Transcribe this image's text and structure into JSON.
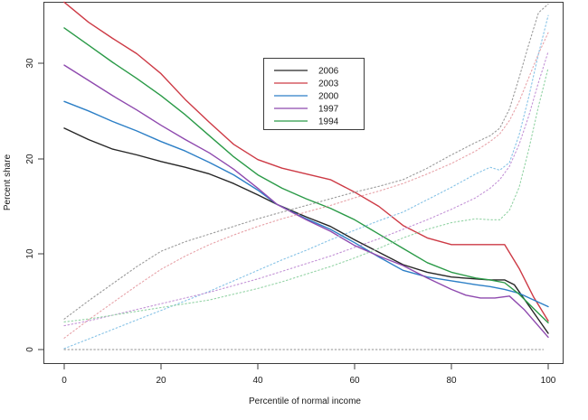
{
  "chart_data": {
    "type": "line",
    "title": "",
    "xlabel": "Percentile of normal income",
    "ylabel": "Percent share",
    "xlim": [
      -4,
      104
    ],
    "ylim": [
      -1.5,
      36.5
    ],
    "grid": false,
    "legend_position": "top-center",
    "x_tick_labels": [
      "0",
      "20",
      "40",
      "60",
      "80",
      "100"
    ],
    "x_tick_values": [
      0,
      20,
      40,
      60,
      80,
      100
    ],
    "y_tick_labels": [
      "0",
      "10",
      "20",
      "30"
    ],
    "y_tick_values": [
      0,
      10,
      20,
      30
    ],
    "legend_entries": [
      "2006",
      "2003",
      "2000",
      "1997",
      "1994"
    ],
    "series": [
      {
        "name": "2006",
        "color": "#262626",
        "style": "solid",
        "points": [
          [
            0,
            23.2
          ],
          [
            5,
            22.0
          ],
          [
            10,
            21.0
          ],
          [
            15,
            20.4
          ],
          [
            20,
            19.7
          ],
          [
            25,
            19.1
          ],
          [
            30,
            18.4
          ],
          [
            35,
            17.4
          ],
          [
            40,
            16.2
          ],
          [
            44,
            15.2
          ],
          [
            50,
            13.9
          ],
          [
            55,
            12.9
          ],
          [
            60,
            11.5
          ],
          [
            65,
            10.2
          ],
          [
            70,
            8.9
          ],
          [
            75,
            8.1
          ],
          [
            80,
            7.6
          ],
          [
            85,
            7.4
          ],
          [
            88,
            7.3
          ],
          [
            91,
            7.3
          ],
          [
            93,
            6.8
          ],
          [
            96,
            4.6
          ],
          [
            100,
            1.7
          ]
        ]
      },
      {
        "name": "2003",
        "color": "#cd3a45",
        "style": "solid",
        "points": [
          [
            0,
            36.4
          ],
          [
            5,
            34.3
          ],
          [
            10,
            32.6
          ],
          [
            15,
            31.0
          ],
          [
            20,
            28.9
          ],
          [
            25,
            26.2
          ],
          [
            30,
            23.8
          ],
          [
            35,
            21.5
          ],
          [
            40,
            19.9
          ],
          [
            45,
            19.0
          ],
          [
            50,
            18.4
          ],
          [
            55,
            17.8
          ],
          [
            60,
            16.5
          ],
          [
            65,
            15.0
          ],
          [
            70,
            13.0
          ],
          [
            75,
            11.7
          ],
          [
            80,
            11.0
          ],
          [
            85,
            11.0
          ],
          [
            88,
            11.0
          ],
          [
            91,
            11.0
          ],
          [
            94,
            8.5
          ],
          [
            97,
            5.5
          ],
          [
            100,
            3.0
          ]
        ]
      },
      {
        "name": "2000",
        "color": "#2c7fc6",
        "style": "solid",
        "points": [
          [
            0,
            26.0
          ],
          [
            5,
            25.0
          ],
          [
            10,
            23.9
          ],
          [
            15,
            22.9
          ],
          [
            20,
            21.8
          ],
          [
            25,
            20.8
          ],
          [
            30,
            19.6
          ],
          [
            35,
            18.3
          ],
          [
            40,
            16.7
          ],
          [
            44,
            15.2
          ],
          [
            50,
            13.7
          ],
          [
            55,
            12.6
          ],
          [
            60,
            11.2
          ],
          [
            65,
            9.7
          ],
          [
            70,
            8.3
          ],
          [
            75,
            7.6
          ],
          [
            80,
            7.2
          ],
          [
            85,
            6.8
          ],
          [
            88,
            6.6
          ],
          [
            91,
            6.3
          ],
          [
            94,
            5.9
          ],
          [
            97,
            5.2
          ],
          [
            100,
            4.5
          ]
        ]
      },
      {
        "name": "1997",
        "color": "#8e49ae",
        "style": "solid",
        "points": [
          [
            0,
            29.8
          ],
          [
            5,
            28.2
          ],
          [
            10,
            26.6
          ],
          [
            15,
            25.1
          ],
          [
            20,
            23.5
          ],
          [
            25,
            22.0
          ],
          [
            30,
            20.6
          ],
          [
            35,
            18.9
          ],
          [
            40,
            16.9
          ],
          [
            44,
            15.2
          ],
          [
            50,
            13.6
          ],
          [
            55,
            12.4
          ],
          [
            60,
            10.9
          ],
          [
            65,
            9.8
          ],
          [
            70,
            8.8
          ],
          [
            75,
            7.5
          ],
          [
            80,
            6.3
          ],
          [
            83,
            5.7
          ],
          [
            86,
            5.4
          ],
          [
            89,
            5.4
          ],
          [
            92,
            5.6
          ],
          [
            95,
            4.2
          ],
          [
            100,
            1.3
          ]
        ]
      },
      {
        "name": "1994",
        "color": "#2a9a47",
        "style": "solid",
        "points": [
          [
            0,
            33.7
          ],
          [
            5,
            31.9
          ],
          [
            10,
            30.1
          ],
          [
            15,
            28.4
          ],
          [
            20,
            26.6
          ],
          [
            25,
            24.6
          ],
          [
            30,
            22.4
          ],
          [
            35,
            20.2
          ],
          [
            40,
            18.3
          ],
          [
            45,
            16.9
          ],
          [
            50,
            15.8
          ],
          [
            55,
            14.8
          ],
          [
            60,
            13.6
          ],
          [
            65,
            12.1
          ],
          [
            70,
            10.6
          ],
          [
            75,
            9.1
          ],
          [
            80,
            8.1
          ],
          [
            85,
            7.5
          ],
          [
            88,
            7.3
          ],
          [
            91,
            7.0
          ],
          [
            94,
            5.8
          ],
          [
            97,
            4.3
          ],
          [
            100,
            2.8
          ]
        ]
      },
      {
        "name": "2006 dotted",
        "color": "#9a9a9a",
        "style": "dotted",
        "points": [
          [
            0,
            3.2
          ],
          [
            5,
            5.1
          ],
          [
            10,
            6.9
          ],
          [
            15,
            8.7
          ],
          [
            20,
            10.3
          ],
          [
            25,
            11.3
          ],
          [
            30,
            12.1
          ],
          [
            35,
            12.9
          ],
          [
            40,
            13.7
          ],
          [
            45,
            14.4
          ],
          [
            50,
            15.1
          ],
          [
            55,
            15.8
          ],
          [
            60,
            16.5
          ],
          [
            65,
            17.1
          ],
          [
            70,
            17.8
          ],
          [
            75,
            19.0
          ],
          [
            80,
            20.4
          ],
          [
            85,
            21.7
          ],
          [
            88,
            22.4
          ],
          [
            90,
            23.2
          ],
          [
            92,
            25.2
          ],
          [
            94,
            28.5
          ],
          [
            96,
            32.0
          ],
          [
            98,
            35.3
          ],
          [
            100,
            36.2
          ]
        ]
      },
      {
        "name": "2003 dotted",
        "color": "#e7a2a8",
        "style": "dotted",
        "points": [
          [
            0,
            1.2
          ],
          [
            5,
            3.1
          ],
          [
            10,
            4.9
          ],
          [
            15,
            6.7
          ],
          [
            20,
            8.4
          ],
          [
            25,
            9.8
          ],
          [
            30,
            11.0
          ],
          [
            35,
            12.0
          ],
          [
            40,
            12.9
          ],
          [
            45,
            13.7
          ],
          [
            50,
            14.4
          ],
          [
            55,
            15.1
          ],
          [
            60,
            15.9
          ],
          [
            65,
            16.6
          ],
          [
            70,
            17.4
          ],
          [
            75,
            18.4
          ],
          [
            80,
            19.5
          ],
          [
            85,
            20.8
          ],
          [
            88,
            21.8
          ],
          [
            90,
            22.6
          ],
          [
            92,
            24.0
          ],
          [
            94,
            26.0
          ],
          [
            96,
            28.5
          ],
          [
            98,
            31.0
          ],
          [
            100,
            33.2
          ]
        ]
      },
      {
        "name": "2000 dotted",
        "color": "#85c2e6",
        "style": "dotted",
        "points": [
          [
            0,
            0.1
          ],
          [
            5,
            1.1
          ],
          [
            10,
            2.1
          ],
          [
            15,
            3.1
          ],
          [
            20,
            4.1
          ],
          [
            25,
            5.1
          ],
          [
            30,
            6.1
          ],
          [
            35,
            7.2
          ],
          [
            40,
            8.3
          ],
          [
            45,
            9.4
          ],
          [
            50,
            10.4
          ],
          [
            55,
            11.5
          ],
          [
            60,
            12.5
          ],
          [
            65,
            13.5
          ],
          [
            70,
            14.4
          ],
          [
            75,
            15.7
          ],
          [
            80,
            17.0
          ],
          [
            85,
            18.4
          ],
          [
            88,
            19.1
          ],
          [
            90,
            18.8
          ],
          [
            92,
            19.6
          ],
          [
            94,
            22.5
          ],
          [
            96,
            26.5
          ],
          [
            98,
            31.0
          ],
          [
            100,
            35.0
          ]
        ]
      },
      {
        "name": "1997 dotted",
        "color": "#c392d6",
        "style": "dotted",
        "points": [
          [
            0,
            2.5
          ],
          [
            5,
            3.0
          ],
          [
            10,
            3.6
          ],
          [
            15,
            4.2
          ],
          [
            20,
            4.8
          ],
          [
            25,
            5.4
          ],
          [
            30,
            6.0
          ],
          [
            35,
            6.7
          ],
          [
            40,
            7.4
          ],
          [
            45,
            8.2
          ],
          [
            50,
            9.0
          ],
          [
            55,
            9.8
          ],
          [
            60,
            10.7
          ],
          [
            65,
            11.6
          ],
          [
            70,
            12.6
          ],
          [
            75,
            13.6
          ],
          [
            80,
            14.7
          ],
          [
            85,
            15.9
          ],
          [
            88,
            16.9
          ],
          [
            90,
            17.8
          ],
          [
            92,
            19.2
          ],
          [
            94,
            21.5
          ],
          [
            96,
            24.5
          ],
          [
            98,
            28.0
          ],
          [
            100,
            31.2
          ]
        ]
      },
      {
        "name": "1994 dotted",
        "color": "#93d3a5",
        "style": "dotted",
        "points": [
          [
            0,
            2.9
          ],
          [
            5,
            3.2
          ],
          [
            10,
            3.6
          ],
          [
            15,
            4.0
          ],
          [
            20,
            4.4
          ],
          [
            25,
            4.8
          ],
          [
            30,
            5.2
          ],
          [
            35,
            5.8
          ],
          [
            40,
            6.4
          ],
          [
            45,
            7.1
          ],
          [
            50,
            7.9
          ],
          [
            55,
            8.7
          ],
          [
            60,
            9.6
          ],
          [
            65,
            10.6
          ],
          [
            70,
            11.7
          ],
          [
            75,
            12.6
          ],
          [
            80,
            13.3
          ],
          [
            85,
            13.7
          ],
          [
            88,
            13.6
          ],
          [
            90,
            13.6
          ],
          [
            92,
            14.6
          ],
          [
            94,
            17.0
          ],
          [
            96,
            21.0
          ],
          [
            98,
            25.5
          ],
          [
            100,
            29.5
          ]
        ]
      },
      {
        "name": "zero line",
        "color": "#8f8f8f",
        "style": "dotted",
        "points": [
          [
            0,
            0.0
          ],
          [
            99,
            0.0
          ]
        ]
      }
    ]
  }
}
